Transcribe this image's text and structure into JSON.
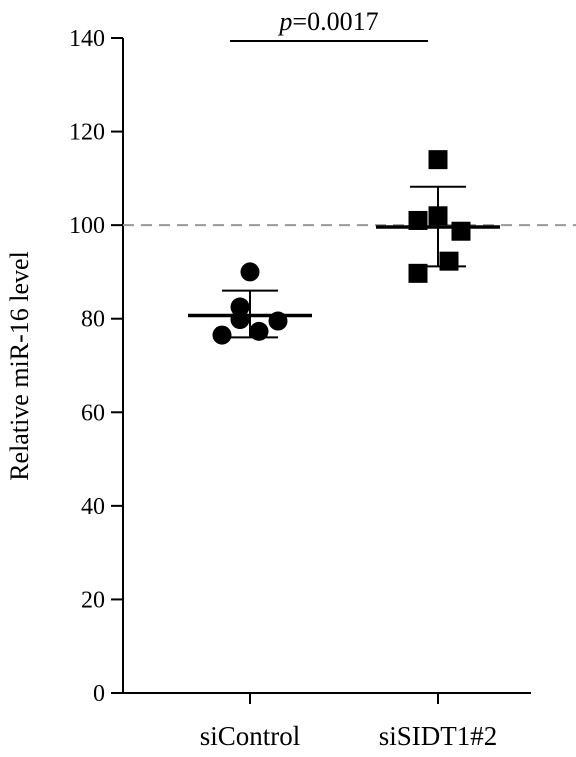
{
  "chart_data": {
    "type": "scatter",
    "ylabel": "Relative miR-16 level",
    "ylim": [
      0,
      140
    ],
    "yticks": [
      0,
      20,
      40,
      60,
      80,
      100,
      120,
      140
    ],
    "categories": [
      "siControl",
      "siSIDT1#2"
    ],
    "reference_line": {
      "y": 100,
      "style": "dashed",
      "color": "#999999"
    },
    "annotation": {
      "prefix": "p",
      "text": "=0.0017"
    },
    "groups": [
      {
        "category": "siControl",
        "marker": "circle",
        "points": [
          {
            "x": -0.1,
            "y": 82.5
          },
          {
            "x": -0.28,
            "y": 76.5
          },
          {
            "x": -0.1,
            "y": 79.8
          },
          {
            "x": 0.0,
            "y": 90.0
          },
          {
            "x": 0.09,
            "y": 77.3
          },
          {
            "x": 0.28,
            "y": 79.5
          }
        ],
        "mean": 80.7,
        "sd_upper": 86.0,
        "sd_lower": 76.0
      },
      {
        "category": "siSIDT1#2",
        "marker": "square",
        "points": [
          {
            "x": -0.2,
            "y": 101.0
          },
          {
            "x": -0.2,
            "y": 89.7
          },
          {
            "x": 0.0,
            "y": 102.0
          },
          {
            "x": 0.0,
            "y": 114.0
          },
          {
            "x": 0.11,
            "y": 92.3
          },
          {
            "x": 0.23,
            "y": 98.7
          }
        ],
        "mean": 99.6,
        "sd_upper": 108.2,
        "sd_lower": 91.2
      }
    ],
    "colors": {
      "marker": "#000000",
      "axis": "#000000"
    }
  }
}
